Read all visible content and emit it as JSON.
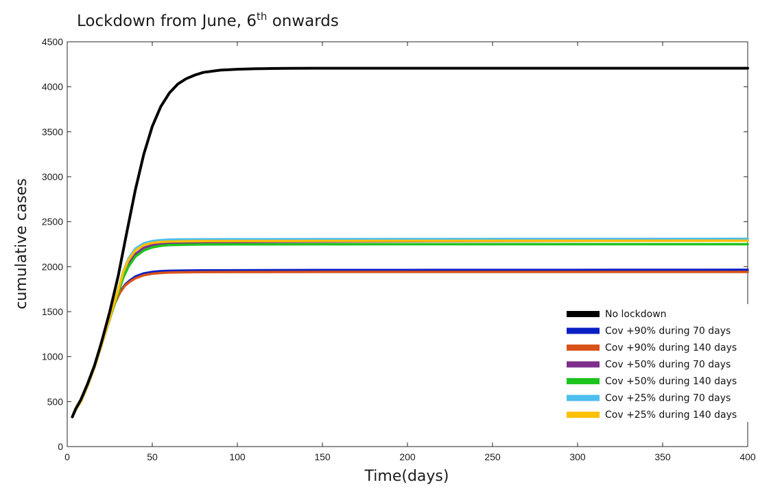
{
  "chart_data": {
    "type": "line",
    "title": "Lockdown from June, 6",
    "title_sup": "th",
    "title_tail": " onwards",
    "xlabel": "Time(days)",
    "ylabel": "cumulative cases",
    "xlim": [
      0,
      400
    ],
    "ylim": [
      0,
      4500
    ],
    "xticks": [
      0,
      50,
      100,
      150,
      200,
      250,
      300,
      350,
      400
    ],
    "yticks": [
      0,
      500,
      1000,
      1500,
      2000,
      2500,
      3000,
      3500,
      4000,
      4500
    ],
    "grid": false,
    "legend_position": "bottom-right",
    "series": [
      {
        "name": "No lockdown",
        "color": "#000000",
        "x": [
          3,
          5,
          8,
          12,
          16,
          20,
          25,
          30,
          35,
          40,
          45,
          50,
          55,
          60,
          65,
          70,
          75,
          80,
          90,
          100,
          110,
          120,
          130,
          145,
          200,
          300,
          400
        ],
        "y": [
          330,
          420,
          520,
          700,
          900,
          1150,
          1500,
          1900,
          2380,
          2850,
          3250,
          3560,
          3780,
          3930,
          4030,
          4090,
          4130,
          4160,
          4185,
          4195,
          4200,
          4203,
          4205,
          4206,
          4206,
          4206,
          4206
        ]
      },
      {
        "name": "Cov +90% during 70 days",
        "color": "#0a1fc4",
        "x": [
          3,
          5,
          8,
          12,
          16,
          20,
          25,
          28,
          31,
          34,
          37,
          40,
          45,
          50,
          55,
          60,
          70,
          80,
          100,
          150,
          200,
          300,
          400
        ],
        "y": [
          330,
          410,
          500,
          680,
          880,
          1120,
          1420,
          1600,
          1720,
          1800,
          1850,
          1890,
          1925,
          1942,
          1950,
          1954,
          1957,
          1958,
          1960,
          1962,
          1963,
          1964,
          1965
        ]
      },
      {
        "name": "Cov +90% during 140 days",
        "color": "#d95319",
        "x": [
          3,
          5,
          8,
          12,
          16,
          20,
          25,
          28,
          31,
          34,
          37,
          40,
          45,
          50,
          55,
          60,
          70,
          80,
          100,
          150,
          200,
          300,
          400
        ],
        "y": [
          330,
          410,
          500,
          680,
          880,
          1120,
          1420,
          1590,
          1710,
          1790,
          1835,
          1870,
          1905,
          1922,
          1930,
          1935,
          1938,
          1940,
          1941,
          1942,
          1942,
          1942,
          1942
        ]
      },
      {
        "name": "Cov +50% during 70 days",
        "color": "#7e2f8e",
        "x": [
          3,
          5,
          8,
          12,
          16,
          20,
          25,
          30,
          33,
          36,
          40,
          45,
          50,
          55,
          60,
          70,
          80,
          100,
          150,
          200,
          300,
          400
        ],
        "y": [
          330,
          410,
          500,
          680,
          880,
          1120,
          1420,
          1720,
          1900,
          2030,
          2140,
          2210,
          2240,
          2255,
          2262,
          2268,
          2271,
          2274,
          2278,
          2282,
          2287,
          2290
        ]
      },
      {
        "name": "Cov +50% during 140 days",
        "color": "#1ec41e",
        "x": [
          3,
          5,
          8,
          12,
          16,
          20,
          25,
          30,
          33,
          36,
          40,
          45,
          50,
          55,
          60,
          70,
          80,
          100,
          150,
          200,
          300,
          400
        ],
        "y": [
          330,
          410,
          500,
          680,
          880,
          1120,
          1420,
          1710,
          1880,
          2000,
          2110,
          2180,
          2215,
          2232,
          2240,
          2245,
          2247,
          2248,
          2249,
          2250,
          2250,
          2250
        ]
      },
      {
        "name": "Cov +25% during 70 days",
        "color": "#4dbeee",
        "x": [
          3,
          5,
          8,
          12,
          16,
          20,
          25,
          30,
          33,
          36,
          40,
          45,
          50,
          55,
          60,
          70,
          80,
          100,
          150,
          200,
          300,
          400
        ],
        "y": [
          330,
          410,
          500,
          680,
          880,
          1120,
          1430,
          1750,
          1950,
          2090,
          2200,
          2260,
          2285,
          2295,
          2300,
          2303,
          2304,
          2305,
          2306,
          2307,
          2308,
          2310
        ]
      },
      {
        "name": "Cov +25% during 140 days",
        "color": "#ffc000",
        "x": [
          3,
          5,
          8,
          12,
          16,
          20,
          25,
          30,
          33,
          36,
          40,
          45,
          50,
          55,
          60,
          70,
          80,
          100,
          150,
          200,
          300,
          400
        ],
        "y": [
          330,
          410,
          500,
          680,
          880,
          1120,
          1430,
          1745,
          1940,
          2075,
          2180,
          2240,
          2265,
          2275,
          2280,
          2283,
          2284,
          2285,
          2286,
          2287,
          2288,
          2289
        ]
      }
    ]
  }
}
